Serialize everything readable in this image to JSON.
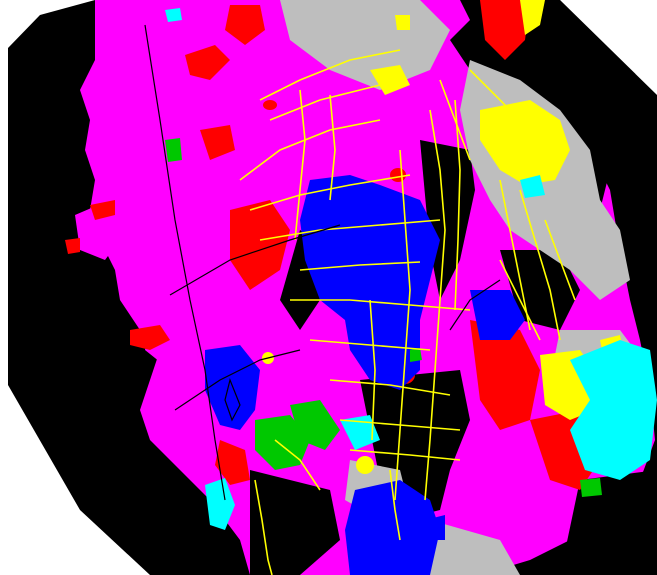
{
  "map": {
    "colors": {
      "background": "#ffffff",
      "outside": "#000000",
      "unit_magenta": "#ff00ff",
      "unit_red": "#ff0000",
      "unit_blue": "#0000ff",
      "unit_yellow": "#ffff00",
      "unit_cyan": "#00ffff",
      "unit_gray": "#bebebe",
      "unit_green": "#00c800",
      "dike": "#ffff00",
      "fault": "#000000",
      "contact": "#000000"
    },
    "units": [
      {
        "name": "unit-magenta",
        "color": "#ff00ff"
      },
      {
        "name": "unit-red",
        "color": "#ff0000"
      },
      {
        "name": "unit-blue",
        "color": "#0000ff"
      },
      {
        "name": "unit-yellow",
        "color": "#ffff00"
      },
      {
        "name": "unit-cyan",
        "color": "#00ffff"
      },
      {
        "name": "unit-gray",
        "color": "#bebebe"
      },
      {
        "name": "unit-green",
        "color": "#00c800"
      },
      {
        "name": "unit-black",
        "color": "#000000"
      }
    ]
  }
}
